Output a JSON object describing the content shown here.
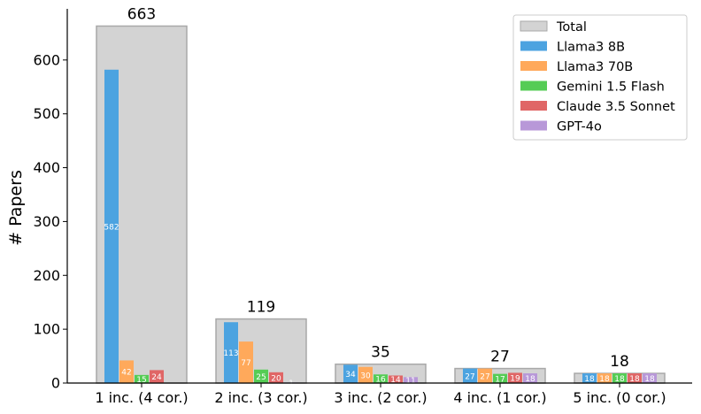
{
  "chart_data": {
    "type": "bar",
    "categories": [
      "1 inc. (4 cor.)",
      "2 inc. (3 cor.)",
      "3 inc. (2 cor.)",
      "4 inc. (1 cor.)",
      "5 inc. (0 cor.)"
    ],
    "ylabel": "# Papers",
    "ylim": [
      0,
      695
    ],
    "yticks": [
      0,
      100,
      200,
      300,
      400,
      500,
      600
    ],
    "legend_position": "top-right",
    "total": {
      "name": "Total",
      "values": [
        663,
        119,
        35,
        27,
        18
      ],
      "color": "#d3d3d3",
      "edge_color": "#a8a8a8"
    },
    "series": [
      {
        "name": "Llama3 8B",
        "values": [
          582,
          113,
          34,
          27,
          18
        ],
        "color": "#4ca3e0"
      },
      {
        "name": "Llama3 70B",
        "values": [
          42,
          77,
          30,
          27,
          18
        ],
        "color": "#ffa95b"
      },
      {
        "name": "Gemini 1.5 Flash",
        "values": [
          15,
          25,
          16,
          17,
          18
        ],
        "color": "#55cc55"
      },
      {
        "name": "Claude 3.5 Sonnet",
        "values": [
          24,
          20,
          14,
          19,
          18
        ],
        "color": "#e06666"
      },
      {
        "name": "GPT-4o",
        "values": [
          0,
          1,
          11,
          18,
          18
        ],
        "color": "#b898d8"
      }
    ]
  }
}
